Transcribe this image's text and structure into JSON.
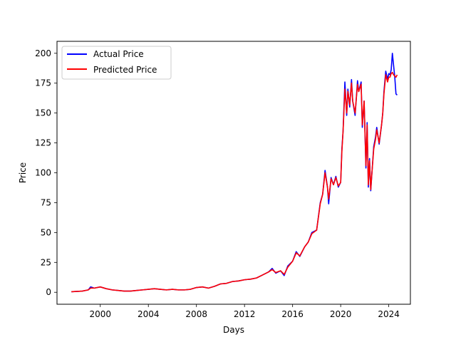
{
  "chart_data": {
    "type": "line",
    "title": "",
    "xlabel": "Days",
    "ylabel": "Price",
    "xlim": [
      1996.4,
      2025.8
    ],
    "ylim": [
      -10,
      210
    ],
    "x_ticks": [
      2000,
      2004,
      2008,
      2012,
      2016,
      2020,
      2024
    ],
    "x_tick_labels": [
      "2000",
      "2004",
      "2008",
      "2012",
      "2016",
      "2020",
      "2024"
    ],
    "y_ticks": [
      0,
      25,
      50,
      75,
      100,
      125,
      150,
      175,
      200
    ],
    "y_tick_labels": [
      "0",
      "25",
      "50",
      "75",
      "100",
      "125",
      "150",
      "175",
      "200"
    ],
    "grid": false,
    "legend_position": "upper-left",
    "series": [
      {
        "name": "Actual Price",
        "color": "#0000ff",
        "x": [
          1997.6,
          1998.5,
          1999.0,
          1999.2,
          1999.5,
          2000.0,
          2000.5,
          2001.0,
          2001.5,
          2002.0,
          2002.5,
          2003.0,
          2003.5,
          2004.0,
          2004.5,
          2005.0,
          2005.5,
          2006.0,
          2006.5,
          2007.0,
          2007.5,
          2008.0,
          2008.5,
          2009.0,
          2009.5,
          2010.0,
          2010.5,
          2011.0,
          2011.5,
          2012.0,
          2012.5,
          2013.0,
          2013.5,
          2014.0,
          2014.3,
          2014.6,
          2015.0,
          2015.3,
          2015.6,
          2016.0,
          2016.3,
          2016.6,
          2017.0,
          2017.3,
          2017.6,
          2018.0,
          2018.3,
          2018.5,
          2018.7,
          2018.9,
          2019.0,
          2019.2,
          2019.4,
          2019.6,
          2019.8,
          2020.0,
          2020.1,
          2020.2,
          2020.35,
          2020.5,
          2020.6,
          2020.75,
          2020.9,
          2021.0,
          2021.2,
          2021.4,
          2021.5,
          2021.7,
          2021.8,
          2021.95,
          2022.1,
          2022.2,
          2022.3,
          2022.4,
          2022.5,
          2022.6,
          2022.75,
          2022.9,
          2023.0,
          2023.2,
          2023.4,
          2023.5,
          2023.6,
          2023.75,
          2023.9,
          2024.0,
          2024.1,
          2024.2,
          2024.3,
          2024.4,
          2024.5,
          2024.6,
          2024.7
        ],
        "values": [
          0.5,
          1.0,
          2.0,
          4.5,
          3.5,
          4.5,
          3.0,
          2.0,
          1.5,
          1.0,
          1.0,
          1.5,
          2.0,
          2.5,
          3.0,
          2.5,
          2.0,
          2.5,
          2.0,
          2.0,
          2.5,
          4.0,
          4.5,
          3.5,
          5.0,
          7.0,
          7.5,
          9.0,
          9.5,
          10.5,
          11.0,
          12.0,
          14.5,
          17.0,
          20.0,
          16.0,
          18.0,
          14.0,
          22.0,
          26.0,
          34.0,
          30.0,
          38.0,
          42.0,
          50.0,
          52.0,
          75.0,
          82.0,
          102.0,
          88.0,
          74.0,
          96.0,
          90.0,
          97.0,
          88.0,
          92.0,
          120.0,
          135.0,
          176.0,
          148.0,
          170.0,
          155.0,
          178.0,
          160.0,
          148.0,
          177.0,
          168.0,
          176.0,
          138.0,
          160.0,
          104.0,
          142.0,
          88.0,
          112.0,
          85.0,
          100.0,
          122.0,
          130.0,
          138.0,
          124.0,
          140.0,
          150.0,
          168.0,
          185.0,
          178.0,
          183.0,
          182.0,
          186.0,
          200.0,
          190.0,
          180.0,
          166.0,
          165.0
        ]
      },
      {
        "name": "Predicted Price",
        "color": "#ff0000",
        "x": [
          1997.6,
          1998.5,
          1999.0,
          1999.2,
          1999.5,
          2000.0,
          2000.5,
          2001.0,
          2001.5,
          2002.0,
          2002.5,
          2003.0,
          2003.5,
          2004.0,
          2004.5,
          2005.0,
          2005.5,
          2006.0,
          2006.5,
          2007.0,
          2007.5,
          2008.0,
          2008.5,
          2009.0,
          2009.5,
          2010.0,
          2010.5,
          2011.0,
          2011.5,
          2012.0,
          2012.5,
          2013.0,
          2013.5,
          2014.0,
          2014.3,
          2014.6,
          2015.0,
          2015.3,
          2015.6,
          2016.0,
          2016.3,
          2016.6,
          2017.0,
          2017.3,
          2017.6,
          2018.0,
          2018.3,
          2018.5,
          2018.7,
          2018.9,
          2019.0,
          2019.2,
          2019.4,
          2019.6,
          2019.8,
          2020.0,
          2020.1,
          2020.2,
          2020.35,
          2020.5,
          2020.6,
          2020.75,
          2020.9,
          2021.0,
          2021.2,
          2021.4,
          2021.5,
          2021.7,
          2021.8,
          2021.95,
          2022.1,
          2022.2,
          2022.3,
          2022.4,
          2022.5,
          2022.6,
          2022.75,
          2022.9,
          2023.0,
          2023.2,
          2023.4,
          2023.5,
          2023.6,
          2023.75,
          2023.9,
          2024.0,
          2024.1,
          2024.2,
          2024.3,
          2024.4,
          2024.5,
          2024.6,
          2024.7
        ],
        "values": [
          0.5,
          1.0,
          2.0,
          3.5,
          3.5,
          4.5,
          3.0,
          2.0,
          1.5,
          1.0,
          1.0,
          1.5,
          2.0,
          2.5,
          3.0,
          2.5,
          2.0,
          2.5,
          2.0,
          2.0,
          2.5,
          4.0,
          4.5,
          3.5,
          5.0,
          7.0,
          7.5,
          9.0,
          9.5,
          10.5,
          11.0,
          12.0,
          14.5,
          17.0,
          19.0,
          16.5,
          18.0,
          15.0,
          21.0,
          26.0,
          33.0,
          30.5,
          38.0,
          42.0,
          49.0,
          52.0,
          74.0,
          82.0,
          100.0,
          88.0,
          78.0,
          95.0,
          90.0,
          96.0,
          89.0,
          92.0,
          118.0,
          135.0,
          170.0,
          150.0,
          168.0,
          157.0,
          175.0,
          160.0,
          150.0,
          174.0,
          168.0,
          174.0,
          140.0,
          160.0,
          106.0,
          140.0,
          90.0,
          110.0,
          86.0,
          100.0,
          120.0,
          128.0,
          136.0,
          125.0,
          140.0,
          150.0,
          166.0,
          182.0,
          176.0,
          180.0,
          180.0,
          183.0,
          184.0,
          182.0,
          181.0,
          180.0,
          182.0
        ]
      }
    ]
  }
}
